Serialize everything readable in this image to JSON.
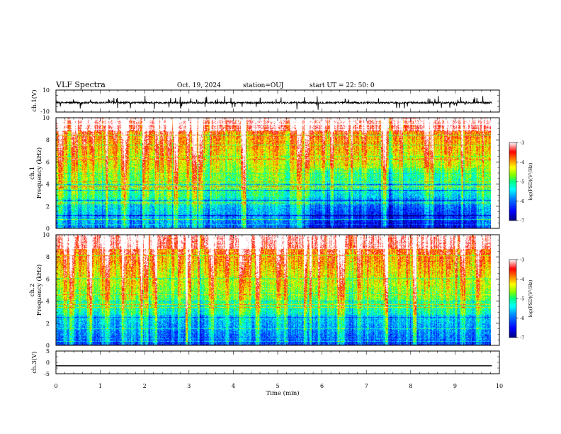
{
  "header": {
    "title": "VLF Spectra",
    "date": "Oct. 19, 2024",
    "station": "station=OUJ",
    "start": "start  UT =   22: 50: 0"
  },
  "colors": {
    "colormap": [
      "#00007f",
      "#0000ff",
      "#0080ff",
      "#00ffff",
      "#00ff80",
      "#80ff00",
      "#ffff00",
      "#ff8000",
      "#ff0000",
      "#ffffff"
    ],
    "waveform": "#000000"
  },
  "chart_data": [
    {
      "type": "line",
      "panel": "ch1-waveform",
      "ylabel": "ch.1(V)",
      "ylim": [
        -10,
        10
      ],
      "yticks": [
        "10",
        "-10"
      ],
      "xlim": [
        0,
        10
      ],
      "data_extent_min": [
        0,
        9.83
      ],
      "approx_level": -1.5
    },
    {
      "type": "heatmap",
      "panel": "ch1-spectrogram",
      "ylabel": "ch.1\nFrequency (kHz)",
      "ylim": [
        0,
        10
      ],
      "yticks": [
        "0",
        "2",
        "4",
        "6",
        "8",
        "10"
      ],
      "xlim": [
        0,
        10
      ],
      "colorbar": {
        "label": "log(PSD)(V²/Hz)",
        "range": [
          -7,
          -3
        ],
        "ticks": [
          "-7",
          "-6",
          "-5",
          "-4",
          "-3"
        ]
      }
    },
    {
      "type": "heatmap",
      "panel": "ch2-spectrogram",
      "ylabel": "ch.2\nFrequency (kHz)",
      "ylim": [
        0,
        10
      ],
      "yticks": [
        "0",
        "2",
        "4",
        "6",
        "8",
        "10"
      ],
      "xlim": [
        0,
        10
      ],
      "colorbar": {
        "label": "log(PSD)(V²/Hz)",
        "range": [
          -7,
          -3
        ],
        "ticks": [
          "-7",
          "-6",
          "-5",
          "-4",
          "-3"
        ]
      }
    },
    {
      "type": "line",
      "panel": "ch3-waveform",
      "ylabel": "ch.3(V)",
      "ylim": [
        -5,
        5
      ],
      "yticks": [
        "5",
        "0",
        "-5"
      ],
      "xlim": [
        0,
        10
      ],
      "data_extent_min": [
        0,
        9.83
      ],
      "approx_level": -1.5
    }
  ],
  "xaxis": {
    "label": "Time  (min)",
    "ticks": [
      "0",
      "1",
      "2",
      "3",
      "4",
      "5",
      "6",
      "7",
      "8",
      "9",
      "10"
    ]
  }
}
